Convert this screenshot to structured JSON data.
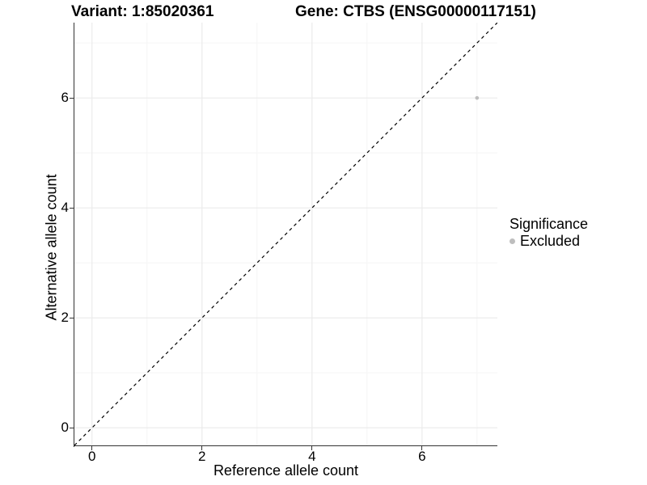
{
  "titles": {
    "variant": "Variant: 1:85020361",
    "gene": "Gene: CTBS (ENSG00000117151)"
  },
  "legend": {
    "title": "Significance",
    "items": [
      {
        "label": "Excluded",
        "color": "#bebebe"
      }
    ]
  },
  "chart_data": {
    "type": "scatter",
    "title": "",
    "xlabel": "Reference allele count",
    "ylabel": "Alternative allele count",
    "xlim": [
      -0.32,
      7.37
    ],
    "ylim": [
      -0.32,
      7.37
    ],
    "x_ticks": [
      0,
      2,
      4,
      6
    ],
    "y_ticks": [
      0,
      2,
      4,
      6
    ],
    "x_minor_ticks": [
      1,
      3,
      5,
      7
    ],
    "y_minor_ticks": [
      1,
      3,
      5,
      7
    ],
    "grid": true,
    "legend_position": "right",
    "series": [
      {
        "name": "Excluded",
        "color": "#bebebe",
        "points": [
          {
            "x": 7,
            "y": 6
          }
        ]
      }
    ],
    "reference_line": {
      "type": "identity",
      "equation": "y = x",
      "style": "dashed",
      "color": "#000000",
      "from": -0.32,
      "to": 7.37
    },
    "colors": {
      "grid_major": "#ebebeb",
      "grid_minor": "#f5f5f5",
      "axis": "#333333",
      "text": "#000000"
    }
  }
}
